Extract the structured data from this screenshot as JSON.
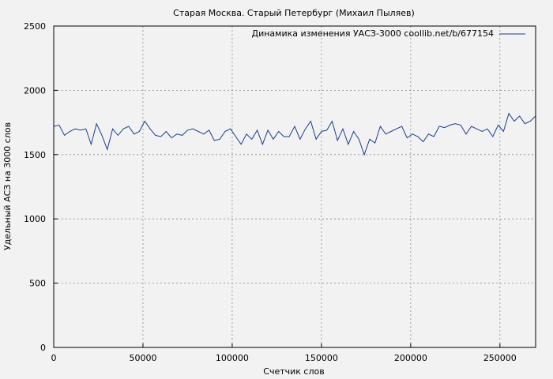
{
  "chart_data": {
    "type": "line",
    "title": "Старая Москва. Старый Петербург (Михаил Пыляев)",
    "xlabel": "Счетчик слов",
    "ylabel": "Удельный АСЗ на 3000 слов",
    "xlim": [
      0,
      270000
    ],
    "ylim": [
      0,
      2500
    ],
    "xticks": [
      0,
      50000,
      100000,
      150000,
      200000,
      250000
    ],
    "yticks": [
      0,
      500,
      1000,
      1500,
      2000,
      2500
    ],
    "xtick_labels": [
      "0",
      "50000",
      "100000",
      "150000",
      "200000",
      "250000"
    ],
    "ytick_labels": [
      "0",
      "500",
      "1000",
      "1500",
      "2000",
      "2500"
    ],
    "grid": true,
    "legend_position": "top-right",
    "series": [
      {
        "name": "Динамика изменения УАСЗ-3000 coollib.net/b/677154",
        "color": "#1a3f8c",
        "x": [
          0,
          3000,
          6000,
          9000,
          12000,
          15000,
          18000,
          21000,
          24000,
          27000,
          30000,
          33000,
          36000,
          39000,
          42000,
          45000,
          48000,
          51000,
          54000,
          57000,
          60000,
          63000,
          66000,
          69000,
          72000,
          75000,
          78000,
          81000,
          84000,
          87000,
          90000,
          93000,
          96000,
          99000,
          102000,
          105000,
          108000,
          111000,
          114000,
          117000,
          120000,
          123000,
          126000,
          129000,
          132000,
          135000,
          138000,
          141000,
          144000,
          147000,
          150000,
          153000,
          156000,
          159000,
          162000,
          165000,
          168000,
          171000,
          174000,
          177000,
          180000,
          183000,
          186000,
          189000,
          192000,
          195000,
          198000,
          201000,
          204000,
          207000,
          210000,
          213000,
          216000,
          219000,
          222000,
          225000,
          228000,
          231000,
          234000,
          237000,
          240000,
          243000,
          246000,
          249000,
          252000,
          255000,
          258000,
          261000,
          264000,
          267000,
          270000
        ],
        "values": [
          1720,
          1730,
          1650,
          1680,
          1700,
          1690,
          1700,
          1580,
          1740,
          1650,
          1540,
          1700,
          1650,
          1700,
          1720,
          1660,
          1680,
          1760,
          1700,
          1650,
          1640,
          1680,
          1630,
          1660,
          1650,
          1690,
          1700,
          1680,
          1660,
          1690,
          1610,
          1620,
          1680,
          1700,
          1640,
          1580,
          1660,
          1620,
          1690,
          1580,
          1690,
          1620,
          1680,
          1640,
          1640,
          1720,
          1620,
          1700,
          1760,
          1620,
          1680,
          1690,
          1760,
          1610,
          1700,
          1580,
          1680,
          1620,
          1500,
          1620,
          1590,
          1720,
          1660,
          1680,
          1700,
          1720,
          1630,
          1660,
          1640,
          1600,
          1660,
          1640,
          1720,
          1710,
          1730,
          1740,
          1730,
          1660,
          1720,
          1700,
          1680,
          1700,
          1640,
          1730,
          1680,
          1820,
          1760,
          1800,
          1740,
          1760,
          1800
        ]
      }
    ]
  }
}
